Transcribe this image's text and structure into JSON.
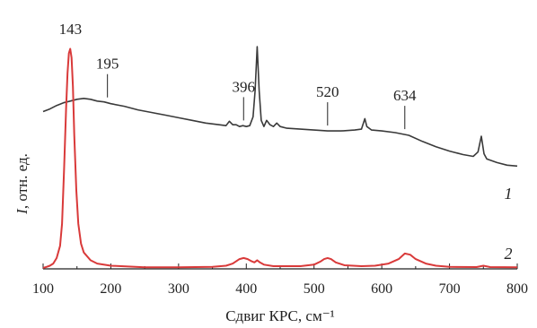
{
  "chart_data": {
    "type": "line",
    "title": "",
    "xlabel": "Сдвиг КРС, см⁻¹",
    "ylabel_italic": "I",
    "ylabel_rest": ", отн. ед.",
    "xlim": [
      100,
      800
    ],
    "xticks": [
      100,
      200,
      300,
      400,
      500,
      600,
      700,
      800
    ],
    "xtick_labels": [
      "100",
      "200",
      "300",
      "400",
      "500",
      "600",
      "700",
      "800"
    ],
    "grid": false,
    "legend": "none",
    "series": [
      {
        "label": "1",
        "color": "#3a3a3a",
        "points": [
          [
            100,
            0.63
          ],
          [
            110,
            0.645
          ],
          [
            120,
            0.665
          ],
          [
            130,
            0.68
          ],
          [
            140,
            0.69
          ],
          [
            150,
            0.7
          ],
          [
            160,
            0.705
          ],
          [
            170,
            0.7
          ],
          [
            180,
            0.69
          ],
          [
            190,
            0.685
          ],
          [
            200,
            0.675
          ],
          [
            220,
            0.66
          ],
          [
            240,
            0.64
          ],
          [
            260,
            0.625
          ],
          [
            280,
            0.61
          ],
          [
            300,
            0.595
          ],
          [
            320,
            0.58
          ],
          [
            340,
            0.565
          ],
          [
            360,
            0.555
          ],
          [
            370,
            0.55
          ],
          [
            375,
            0.575
          ],
          [
            380,
            0.555
          ],
          [
            385,
            0.555
          ],
          [
            390,
            0.545
          ],
          [
            395,
            0.55
          ],
          [
            400,
            0.545
          ],
          [
            405,
            0.55
          ],
          [
            410,
            0.6
          ],
          [
            413,
            0.75
          ],
          [
            416,
            1.0
          ],
          [
            419,
            0.75
          ],
          [
            422,
            0.58
          ],
          [
            426,
            0.545
          ],
          [
            430,
            0.58
          ],
          [
            435,
            0.555
          ],
          [
            440,
            0.545
          ],
          [
            445,
            0.565
          ],
          [
            450,
            0.545
          ],
          [
            460,
            0.535
          ],
          [
            480,
            0.53
          ],
          [
            500,
            0.525
          ],
          [
            520,
            0.52
          ],
          [
            540,
            0.52
          ],
          [
            560,
            0.525
          ],
          [
            570,
            0.53
          ],
          [
            575,
            0.59
          ],
          [
            578,
            0.545
          ],
          [
            585,
            0.525
          ],
          [
            600,
            0.52
          ],
          [
            620,
            0.51
          ],
          [
            640,
            0.495
          ],
          [
            660,
            0.46
          ],
          [
            680,
            0.43
          ],
          [
            700,
            0.405
          ],
          [
            720,
            0.385
          ],
          [
            735,
            0.375
          ],
          [
            742,
            0.4
          ],
          [
            747,
            0.49
          ],
          [
            751,
            0.39
          ],
          [
            755,
            0.36
          ],
          [
            770,
            0.34
          ],
          [
            785,
            0.325
          ],
          [
            800,
            0.32
          ]
        ],
        "annotations": [
          {
            "x": 195,
            "label": "195"
          },
          {
            "x": 396,
            "label": "396"
          },
          {
            "x": 520,
            "label": "520"
          },
          {
            "x": 634,
            "label": "634"
          }
        ]
      },
      {
        "label": "2",
        "color": "#d93a3a",
        "points": [
          [
            100,
            0.0
          ],
          [
            105,
            0.005
          ],
          [
            110,
            0.01
          ],
          [
            115,
            0.02
          ],
          [
            120,
            0.045
          ],
          [
            125,
            0.1
          ],
          [
            128,
            0.2
          ],
          [
            131,
            0.45
          ],
          [
            134,
            0.72
          ],
          [
            136,
            0.88
          ],
          [
            138,
            0.97
          ],
          [
            140,
            0.99
          ],
          [
            142,
            0.95
          ],
          [
            144,
            0.82
          ],
          [
            146,
            0.6
          ],
          [
            149,
            0.35
          ],
          [
            152,
            0.2
          ],
          [
            156,
            0.11
          ],
          [
            160,
            0.07
          ],
          [
            170,
            0.035
          ],
          [
            180,
            0.02
          ],
          [
            200,
            0.01
          ],
          [
            250,
            0.003
          ],
          [
            300,
            0.003
          ],
          [
            350,
            0.005
          ],
          [
            370,
            0.01
          ],
          [
            380,
            0.02
          ],
          [
            390,
            0.04
          ],
          [
            396,
            0.045
          ],
          [
            402,
            0.04
          ],
          [
            408,
            0.03
          ],
          [
            412,
            0.025
          ],
          [
            416,
            0.035
          ],
          [
            420,
            0.025
          ],
          [
            426,
            0.015
          ],
          [
            440,
            0.008
          ],
          [
            480,
            0.008
          ],
          [
            500,
            0.015
          ],
          [
            510,
            0.03
          ],
          [
            515,
            0.04
          ],
          [
            520,
            0.045
          ],
          [
            525,
            0.04
          ],
          [
            532,
            0.025
          ],
          [
            545,
            0.012
          ],
          [
            570,
            0.008
          ],
          [
            590,
            0.01
          ],
          [
            610,
            0.02
          ],
          [
            625,
            0.04
          ],
          [
            634,
            0.065
          ],
          [
            642,
            0.06
          ],
          [
            650,
            0.04
          ],
          [
            665,
            0.02
          ],
          [
            680,
            0.01
          ],
          [
            700,
            0.005
          ],
          [
            740,
            0.004
          ],
          [
            750,
            0.01
          ],
          [
            760,
            0.004
          ],
          [
            800,
            0.003
          ]
        ],
        "annotations": [
          {
            "x": 143,
            "label": "143"
          }
        ]
      }
    ]
  }
}
